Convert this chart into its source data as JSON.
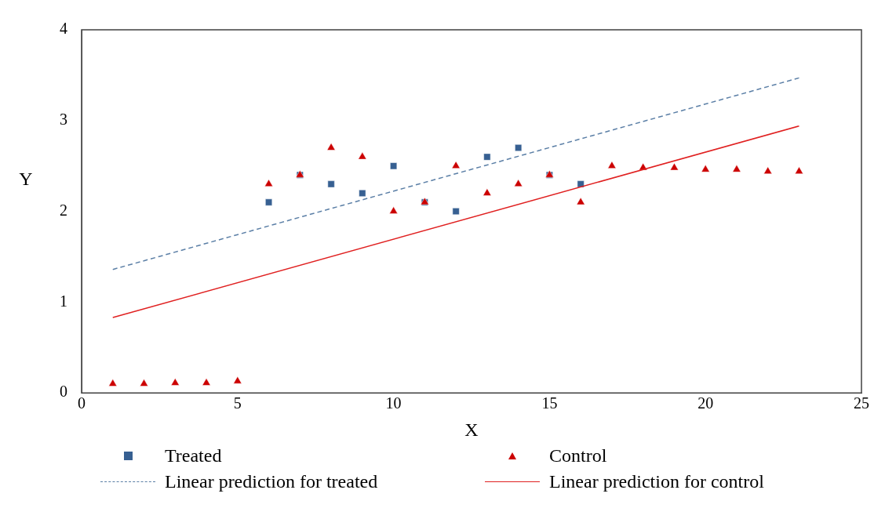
{
  "chart_data": {
    "type": "scatter",
    "xlabel": "X",
    "ylabel": "Y",
    "xlim": [
      0,
      25
    ],
    "xticks": [
      0,
      5,
      10,
      15,
      20,
      25
    ],
    "ylim": [
      0,
      4
    ],
    "yticks": [
      0,
      1,
      2,
      3,
      4
    ],
    "grid": false,
    "legend": "bottom",
    "series": [
      {
        "name": "Treated",
        "marker": "square",
        "color": "#376092",
        "x": [
          6,
          7,
          8,
          9,
          10,
          11,
          12,
          13,
          14,
          15,
          16
        ],
        "values": [
          2.1,
          2.4,
          2.3,
          2.2,
          2.5,
          2.1,
          2.0,
          2.6,
          2.7,
          2.4,
          2.3
        ]
      },
      {
        "name": "Control",
        "marker": "triangle",
        "color": "#cc0000",
        "x": [
          1,
          2,
          3,
          4,
          5,
          6,
          7,
          8,
          9,
          10,
          11,
          12,
          13,
          14,
          15,
          16,
          17,
          18,
          19,
          20,
          21,
          22,
          23
        ],
        "values": [
          0.1,
          0.1,
          0.11,
          0.11,
          0.13,
          2.3,
          2.4,
          2.7,
          2.6,
          2.0,
          2.1,
          2.5,
          2.2,
          2.3,
          2.4,
          2.1,
          2.5,
          2.48,
          2.48,
          2.46,
          2.46,
          2.44,
          2.44
        ]
      },
      {
        "name": "Linear prediction for treated",
        "type": "line",
        "marker": "none",
        "line_style": "dashed",
        "color": "#5b7fa6",
        "x": [
          1,
          23
        ],
        "values": [
          1.36,
          3.47
        ]
      },
      {
        "name": "Linear prediction for control",
        "type": "line",
        "marker": "none",
        "line_style": "solid",
        "color": "#e02020",
        "x": [
          1,
          23
        ],
        "values": [
          0.83,
          2.94
        ]
      }
    ]
  }
}
